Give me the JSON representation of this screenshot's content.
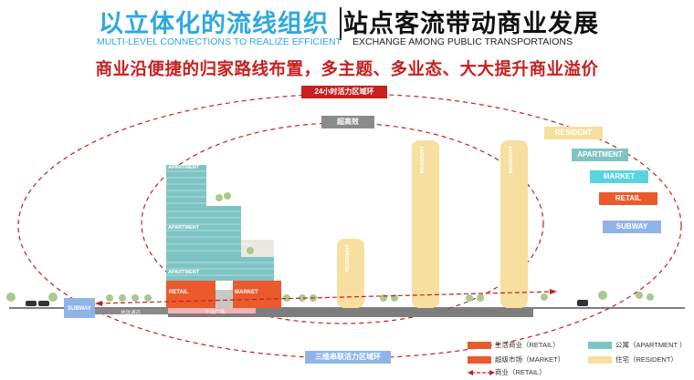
{
  "header": {
    "title_left": "以立体化的流线组织",
    "title_right": "站点客流带动商业发展",
    "subtitle_left": "MULTI-LEVEL CONNECTIONS TO REALIZE EFFICIENT",
    "subtitle_right": "EXCHANGE AMONG PUBLIC TRANSPORTAIONS",
    "headline": "商业沿便捷的归家路线布置，多主题、多业态、大大提升商业溢价"
  },
  "diagram": {
    "ring_outer_label": "24小时活力区域环",
    "ring_inner_label": "超高效",
    "ring_bottom_label": "三维串联活力区域环",
    "tower_labels": [
      "APARTMENT",
      "APARTMENT",
      "APARTMENT"
    ],
    "retail_label": "RETAIL",
    "market_label": "MARKET",
    "resident_label": "RESIDENT",
    "subway_label": "SUBWAY",
    "underground_label": "地铁通道",
    "plaza_label": "下沉广场"
  },
  "tags": [
    {
      "label": "RESIDENT",
      "color": "#f7dfa0"
    },
    {
      "label": "APARTMENT",
      "color": "#7fc4c4"
    },
    {
      "label": "MARKET",
      "color": "#59d3df"
    },
    {
      "label": "RETAIL",
      "color": "#ea5a2c"
    },
    {
      "label": "SUBWAY",
      "color": "#8fb5e8"
    }
  ],
  "legend": [
    {
      "label": "生活商业（RETAIL）",
      "color": "#ea5a2c",
      "type": "swatch"
    },
    {
      "label": "公寓（APARTMENT ）",
      "color": "#7fc4c4",
      "type": "swatch"
    },
    {
      "label": "超级市场（MARKET）",
      "color": "#ea5a2c",
      "type": "swatch"
    },
    {
      "label": "住宅（RESIDENT）",
      "color": "#f7dfa0",
      "type": "swatch"
    },
    {
      "label": "商业（RETAIL）",
      "color": "#c81f1f",
      "type": "arrow"
    }
  ]
}
